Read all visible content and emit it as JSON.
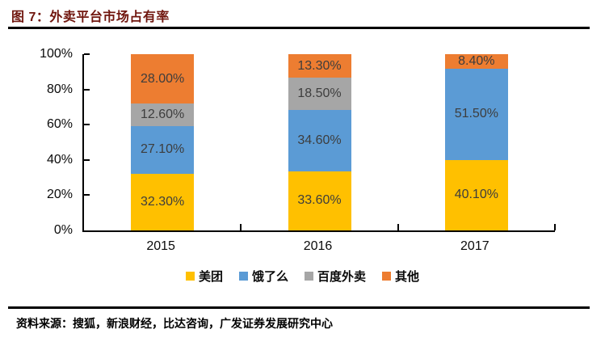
{
  "figure": {
    "title": "图 7：外卖平台市场占有率",
    "source": "资料来源：搜狐，新浪财经，比达咨询，广发证券发展研究中心"
  },
  "colors": {
    "title": "#70160E",
    "divider": "#000000",
    "axis": "#000000",
    "data_label": "#3D3D3D"
  },
  "chart_data": {
    "type": "bar",
    "stacked": true,
    "title": "外卖平台市场占有率",
    "categories": [
      "2015",
      "2016",
      "2017"
    ],
    "series": [
      {
        "name": "美团",
        "color": "#FFC000",
        "values": [
          32.3,
          33.6,
          40.1
        ],
        "labels": [
          "32.30%",
          "33.60%",
          "40.10%"
        ]
      },
      {
        "name": "饿了么",
        "color": "#5B9BD5",
        "values": [
          27.1,
          34.6,
          51.5
        ],
        "labels": [
          "27.10%",
          "34.60%",
          "51.50%"
        ]
      },
      {
        "name": "百度外卖",
        "color": "#A6A6A6",
        "values": [
          12.6,
          18.5,
          0
        ],
        "labels": [
          "12.60%",
          "18.50%",
          ""
        ]
      },
      {
        "name": "其他",
        "color": "#ED7D31",
        "values": [
          28.0,
          13.3,
          8.4
        ],
        "labels": [
          "28.00%",
          "13.30%",
          "8.40%"
        ]
      }
    ],
    "xlabel": "",
    "ylabel": "",
    "ylim": [
      0,
      100
    ],
    "y_ticks": [
      0,
      20,
      40,
      60,
      80,
      100
    ],
    "y_tick_labels": [
      "0%",
      "20%",
      "40%",
      "60%",
      "80%",
      "100%"
    ],
    "grid": false,
    "legend_position": "bottom"
  }
}
